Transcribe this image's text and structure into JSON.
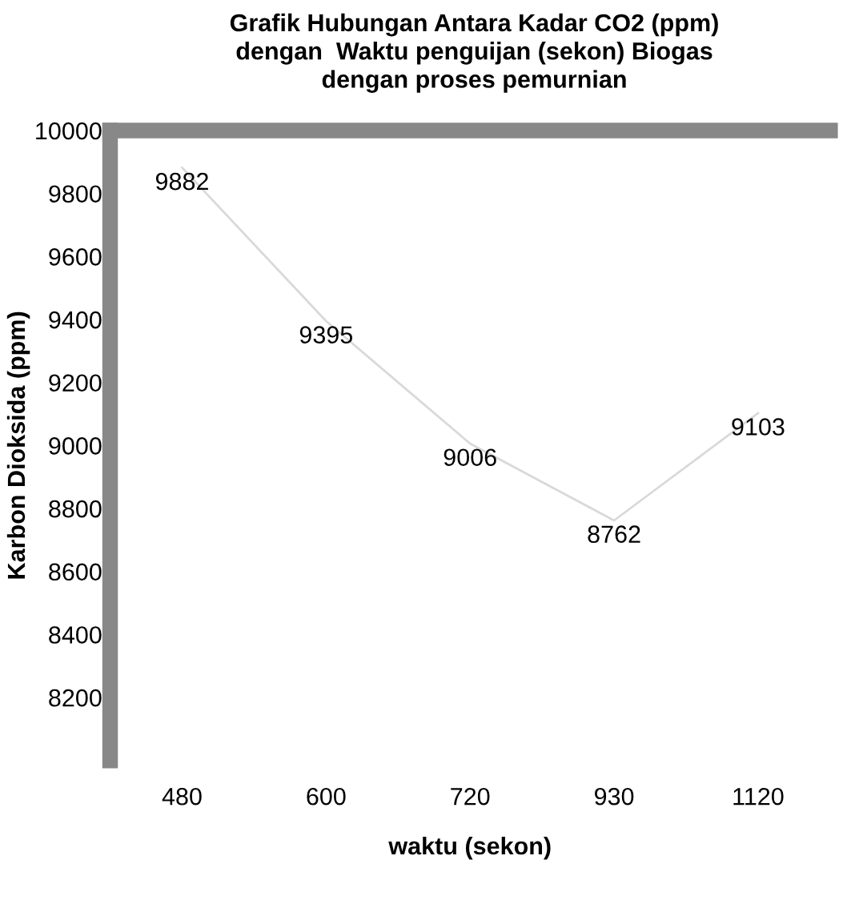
{
  "chart_data": {
    "type": "line",
    "title": "Grafik Hubungan Antara Kadar CO2 (ppm)\ndengan  Waktu penguijan (sekon) Biogas\ndengan proses pemurnian",
    "xlabel": "waktu (sekon)",
    "ylabel": "Karbon Dioksida (ppm)",
    "categories": [
      "480",
      "600",
      "720",
      "930",
      "1120"
    ],
    "series": [
      {
        "color": "#d9d9d9",
        "values": [
          9882,
          9395,
          9006,
          8762,
          9103
        ]
      }
    ],
    "ylim": [
      8000,
      10000
    ],
    "yticks": [
      8200,
      8400,
      8600,
      8800,
      9000,
      9200,
      9400,
      9600,
      9800,
      10000
    ],
    "data_labels": true,
    "grid": false,
    "legend": false
  }
}
